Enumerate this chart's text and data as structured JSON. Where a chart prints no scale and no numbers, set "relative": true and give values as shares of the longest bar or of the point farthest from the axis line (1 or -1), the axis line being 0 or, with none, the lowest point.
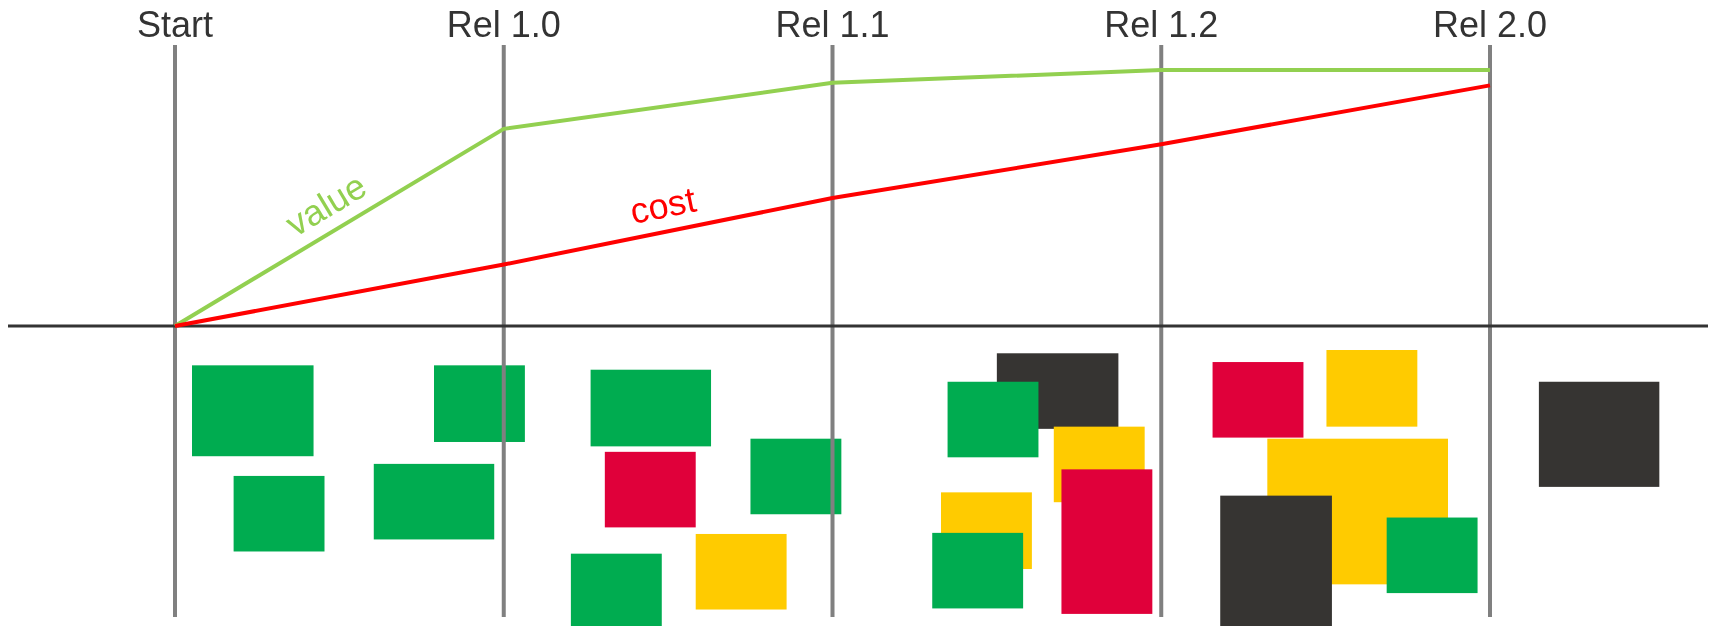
{
  "chart_data": {
    "type": "line",
    "relative": true,
    "categories": [
      "Start",
      "Rel 1.0",
      "Rel 1.1",
      "Rel 1.2",
      "Rel 2.0"
    ],
    "series": [
      {
        "name": "value",
        "color": "#92d050",
        "values": [
          0,
          0.77,
          0.95,
          1.0,
          1.0
        ]
      },
      {
        "name": "cost",
        "color": "#ff0000",
        "values": [
          0,
          0.24,
          0.5,
          0.71,
          0.94
        ]
      }
    ],
    "grid": "x",
    "marker": "none",
    "line_style": "solid",
    "legend": false
  }
}
